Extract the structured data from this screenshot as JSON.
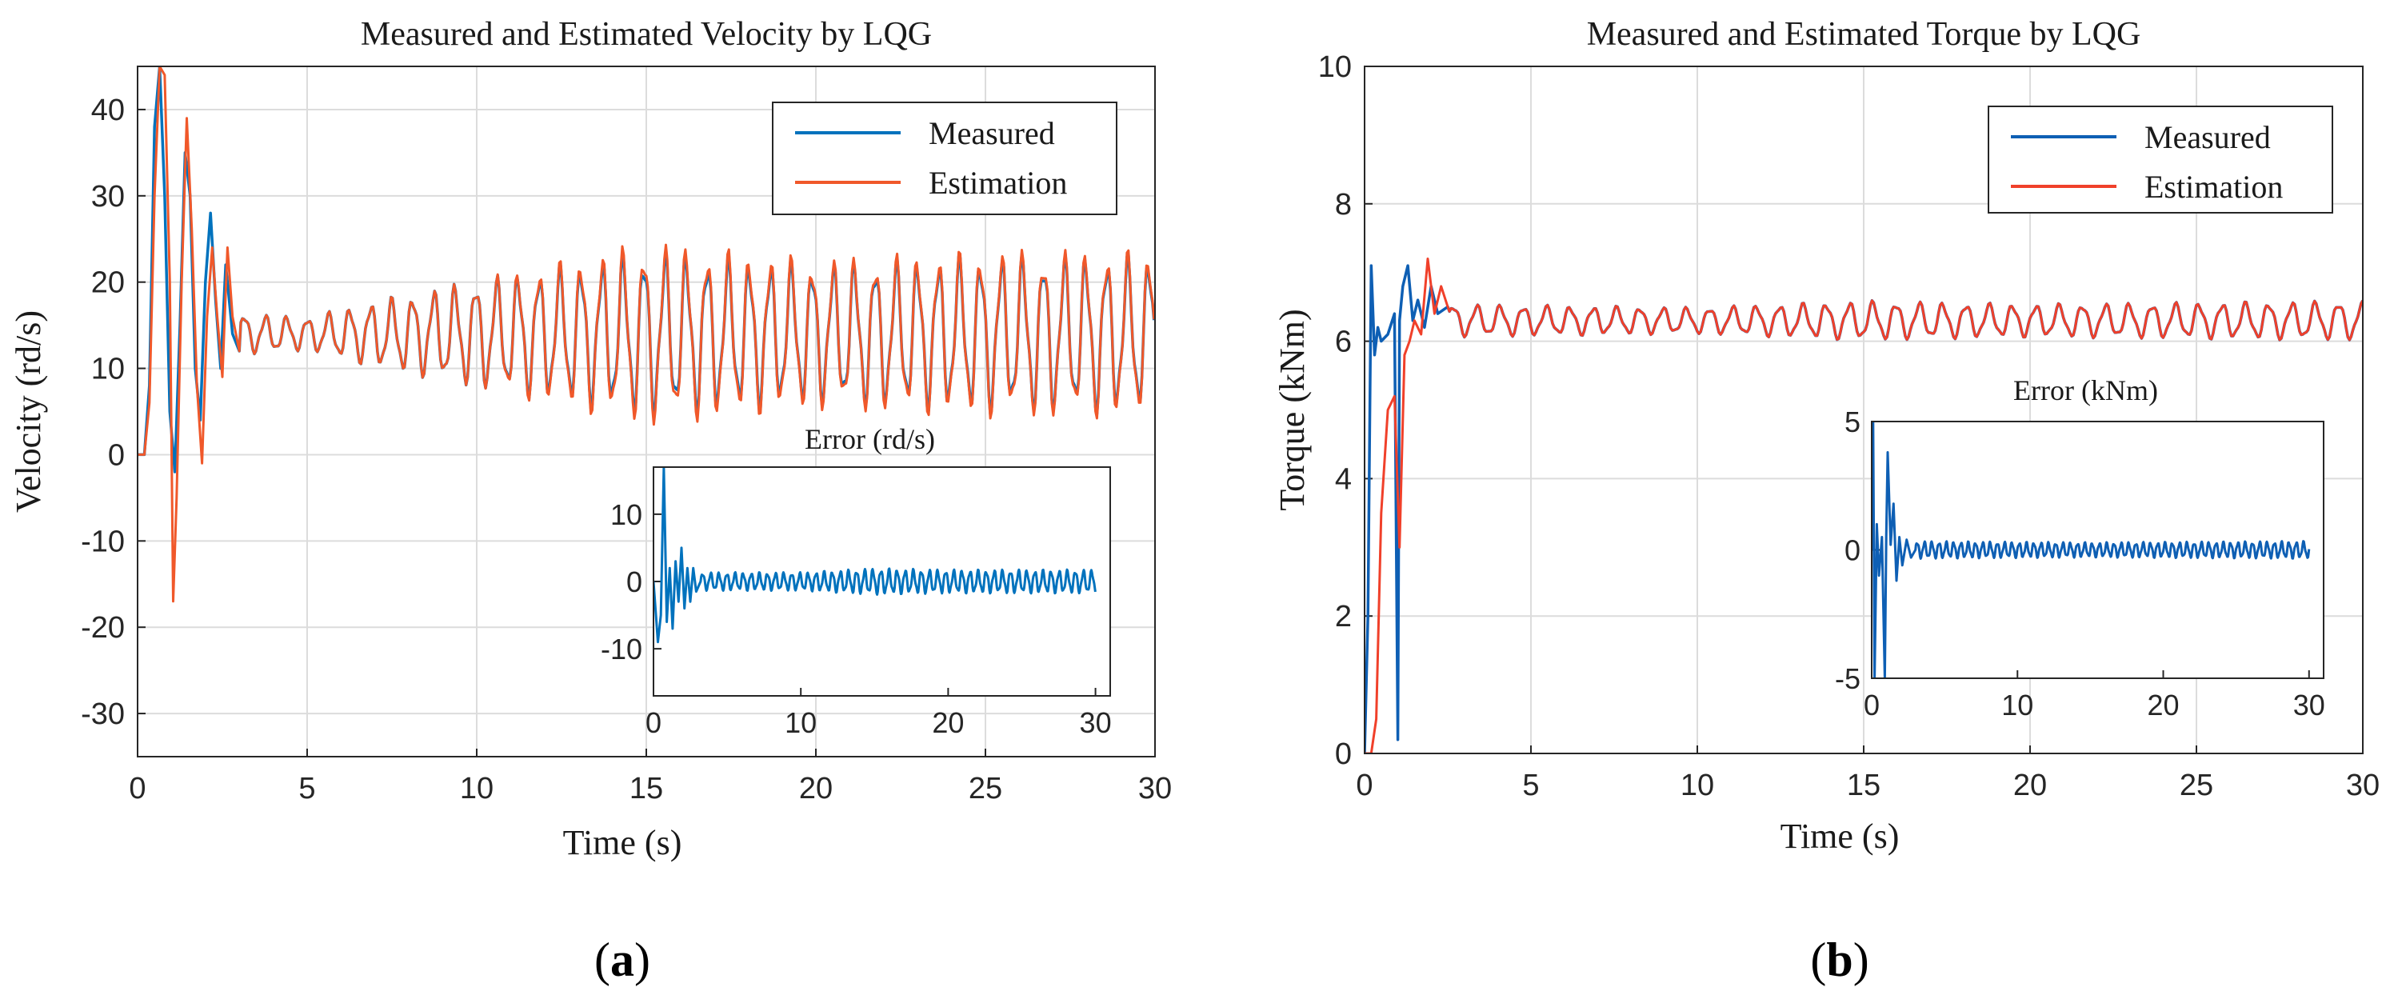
{
  "figure": {
    "colors": {
      "measured": "#0072bd",
      "estimation": "#f0582a",
      "grid": "#dcdcdc",
      "axis": "#262626"
    }
  },
  "chart_data": [
    {
      "id": "a",
      "type": "line",
      "panel_label": "a",
      "title": "Measured and Estimated Velocity by LQG",
      "xlabel": "Time (s)",
      "ylabel": "Velocity (rd/s)",
      "xlim": [
        0,
        30
      ],
      "ylim": [
        -35,
        45
      ],
      "xticks": [
        0,
        5,
        10,
        15,
        20,
        25,
        30
      ],
      "yticks": [
        -30,
        -20,
        -10,
        0,
        10,
        20,
        30,
        40
      ],
      "legend": {
        "position": "top-right",
        "entries": [
          "Measured",
          "Estimation"
        ]
      },
      "series": [
        {
          "name": "Measured",
          "color": "#0072bd",
          "x": [
            0,
            0.2,
            0.35,
            0.5,
            0.65,
            0.8,
            0.95,
            1.1,
            1.25,
            1.4,
            1.55,
            1.7,
            1.85,
            2.0,
            2.15,
            2.3,
            2.45,
            2.6,
            2.8,
            3.0
          ],
          "y": [
            0,
            0,
            8,
            38,
            45,
            30,
            5,
            -2,
            15,
            35,
            30,
            10,
            4,
            20,
            28,
            18,
            10,
            22,
            14,
            12
          ],
          "steady": {
            "from": 3.0,
            "to": 30,
            "mean": 14,
            "period": 0.62,
            "amp_points": [
              [
                3,
                2.5
              ],
              [
                5,
                2
              ],
              [
                7,
                4
              ],
              [
                10,
                6.5
              ],
              [
                15,
                10
              ],
              [
                20,
                8.5
              ],
              [
                25,
                9.5
              ],
              [
                30,
                9.5
              ]
            ]
          }
        },
        {
          "name": "Estimation",
          "color": "#f0582a",
          "x": [
            0,
            0.2,
            0.35,
            0.5,
            0.65,
            0.8,
            0.95,
            1.05,
            1.15,
            1.3,
            1.45,
            1.6,
            1.75,
            1.9,
            2.05,
            2.2,
            2.35,
            2.5,
            2.65,
            2.8,
            3.0
          ],
          "y": [
            0,
            0,
            6,
            30,
            45,
            44,
            20,
            -17,
            -5,
            20,
            39,
            26,
            8,
            -1,
            16,
            24,
            16,
            9,
            24,
            16,
            12
          ],
          "steady": {
            "from": 3.0,
            "to": 30,
            "mean": 14,
            "period": 0.62,
            "amp_points": [
              [
                3,
                2.5
              ],
              [
                5,
                2
              ],
              [
                7,
                4
              ],
              [
                10,
                6.5
              ],
              [
                15,
                11
              ],
              [
                20,
                9
              ],
              [
                25,
                10
              ],
              [
                30,
                10
              ]
            ]
          }
        }
      ],
      "inset": {
        "title": "Error (rd/s)",
        "xlim": [
          0,
          31
        ],
        "ylim": [
          -17,
          17
        ],
        "xticks": [
          0,
          10,
          20,
          30
        ],
        "yticks": [
          -10,
          0,
          10
        ],
        "series": [
          {
            "name": "Error",
            "color": "#0072bd",
            "x": [
              0,
              0.3,
              0.5,
              0.7,
              0.9,
              1.1,
              1.3,
              1.5,
              1.7,
              1.9,
              2.1,
              2.3,
              2.5,
              2.7,
              2.9,
              3.2
            ],
            "y": [
              0,
              -9,
              -5,
              17,
              -6,
              2,
              -7,
              3,
              -3,
              5,
              -4,
              2,
              -3,
              2,
              -1.5,
              0
            ],
            "steady": {
              "from": 3.2,
              "to": 30,
              "mean": 0,
              "period": 0.55,
              "amp_points": [
                [
                  3.2,
                  1.4
                ],
                [
                  10,
                  1.4
                ],
                [
                  15,
                  2
                ],
                [
                  20,
                  1.8
                ],
                [
                  30,
                  1.8
                ]
              ]
            }
          }
        ]
      }
    },
    {
      "id": "b",
      "type": "line",
      "panel_label": "b",
      "title": "Measured and Estimated Torque by LQG",
      "xlabel": "Time (s)",
      "ylabel": "Torque (kNm)",
      "xlim": [
        0,
        30
      ],
      "ylim": [
        0,
        10
      ],
      "xticks": [
        0,
        5,
        10,
        15,
        20,
        25,
        30
      ],
      "yticks": [
        0,
        2,
        4,
        6,
        8,
        10
      ],
      "legend": {
        "position": "top-right",
        "entries": [
          "Measured",
          "Estimation"
        ]
      },
      "series": [
        {
          "name": "Measured",
          "color": "#0e5fb4",
          "x": [
            0,
            0.1,
            0.2,
            0.3,
            0.4,
            0.5,
            0.7,
            0.9,
            1.0,
            1.05,
            1.15,
            1.3,
            1.45,
            1.6,
            1.8,
            2.0,
            2.2,
            2.5
          ],
          "y": [
            0,
            2,
            7.1,
            5.8,
            6.2,
            6.0,
            6.1,
            6.4,
            0.2,
            6.3,
            6.8,
            7.1,
            6.3,
            6.6,
            6.2,
            6.8,
            6.4,
            6.5
          ],
          "steady": {
            "from": 2.5,
            "to": 30,
            "mean": 6.3,
            "period": 0.7,
            "amp_points": [
              [
                2.5,
                0.25
              ],
              [
                10,
                0.2
              ],
              [
                15,
                0.3
              ],
              [
                20,
                0.25
              ],
              [
                30,
                0.3
              ]
            ]
          }
        },
        {
          "name": "Estimation",
          "color": "#f0402a",
          "x": [
            0,
            0.2,
            0.35,
            0.5,
            0.7,
            0.9,
            1.05,
            1.2,
            1.35,
            1.5,
            1.7,
            1.9,
            2.1,
            2.3,
            2.5
          ],
          "y": [
            0,
            0,
            0.5,
            3.5,
            5.0,
            5.2,
            3.0,
            5.8,
            6.0,
            6.3,
            6.1,
            7.2,
            6.4,
            6.8,
            6.5
          ],
          "steady": {
            "from": 2.5,
            "to": 30,
            "mean": 6.3,
            "period": 0.7,
            "amp_points": [
              [
                2.5,
                0.25
              ],
              [
                10,
                0.2
              ],
              [
                15,
                0.3
              ],
              [
                20,
                0.25
              ],
              [
                30,
                0.3
              ]
            ]
          }
        }
      ],
      "inset": {
        "title": "Error (kNm)",
        "xlim": [
          0,
          31
        ],
        "ylim": [
          -5,
          5
        ],
        "xticks": [
          0,
          10,
          20,
          30
        ],
        "yticks": [
          -5,
          0,
          5
        ],
        "series": [
          {
            "name": "Error",
            "color": "#0e5fb4",
            "x": [
              0,
              0.1,
              0.2,
              0.35,
              0.5,
              0.7,
              0.9,
              1.0,
              1.1,
              1.3,
              1.5,
              1.7,
              1.9,
              2.1,
              2.4,
              2.7,
              3.0
            ],
            "y": [
              0,
              5,
              -5,
              1,
              -1,
              0.5,
              -5,
              0.5,
              3.8,
              0.2,
              1.8,
              -1.2,
              0.5,
              -0.6,
              0.4,
              -0.3,
              0
            ],
            "steady": {
              "from": 3.0,
              "to": 30,
              "mean": 0,
              "period": 0.5,
              "amp_points": [
                [
                  3,
                  0.35
                ],
                [
                  15,
                  0.3
                ],
                [
                  30,
                  0.35
                ]
              ]
            }
          }
        ]
      }
    }
  ]
}
